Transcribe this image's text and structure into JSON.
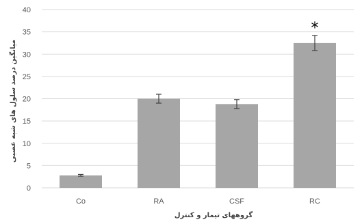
{
  "chart_data": {
    "type": "bar",
    "categories": [
      "Co",
      "RA",
      "CSF",
      "RC"
    ],
    "values": [
      2.8,
      20.0,
      18.8,
      32.5
    ],
    "error": [
      0.2,
      1.0,
      1.0,
      1.7
    ],
    "annotations": [
      {
        "category": "RC",
        "text": "*"
      }
    ],
    "ylim": [
      0,
      40
    ],
    "yticks": [
      0,
      5,
      10,
      15,
      20,
      25,
      30,
      35,
      40
    ],
    "xlabel": "گروههای تیمار و کنترل",
    "ylabel": "میانگین درصد سلول های شبه عصبی",
    "grid": true,
    "bar_color": "#a6a6a6",
    "grid_color": "#d9d9d9"
  }
}
